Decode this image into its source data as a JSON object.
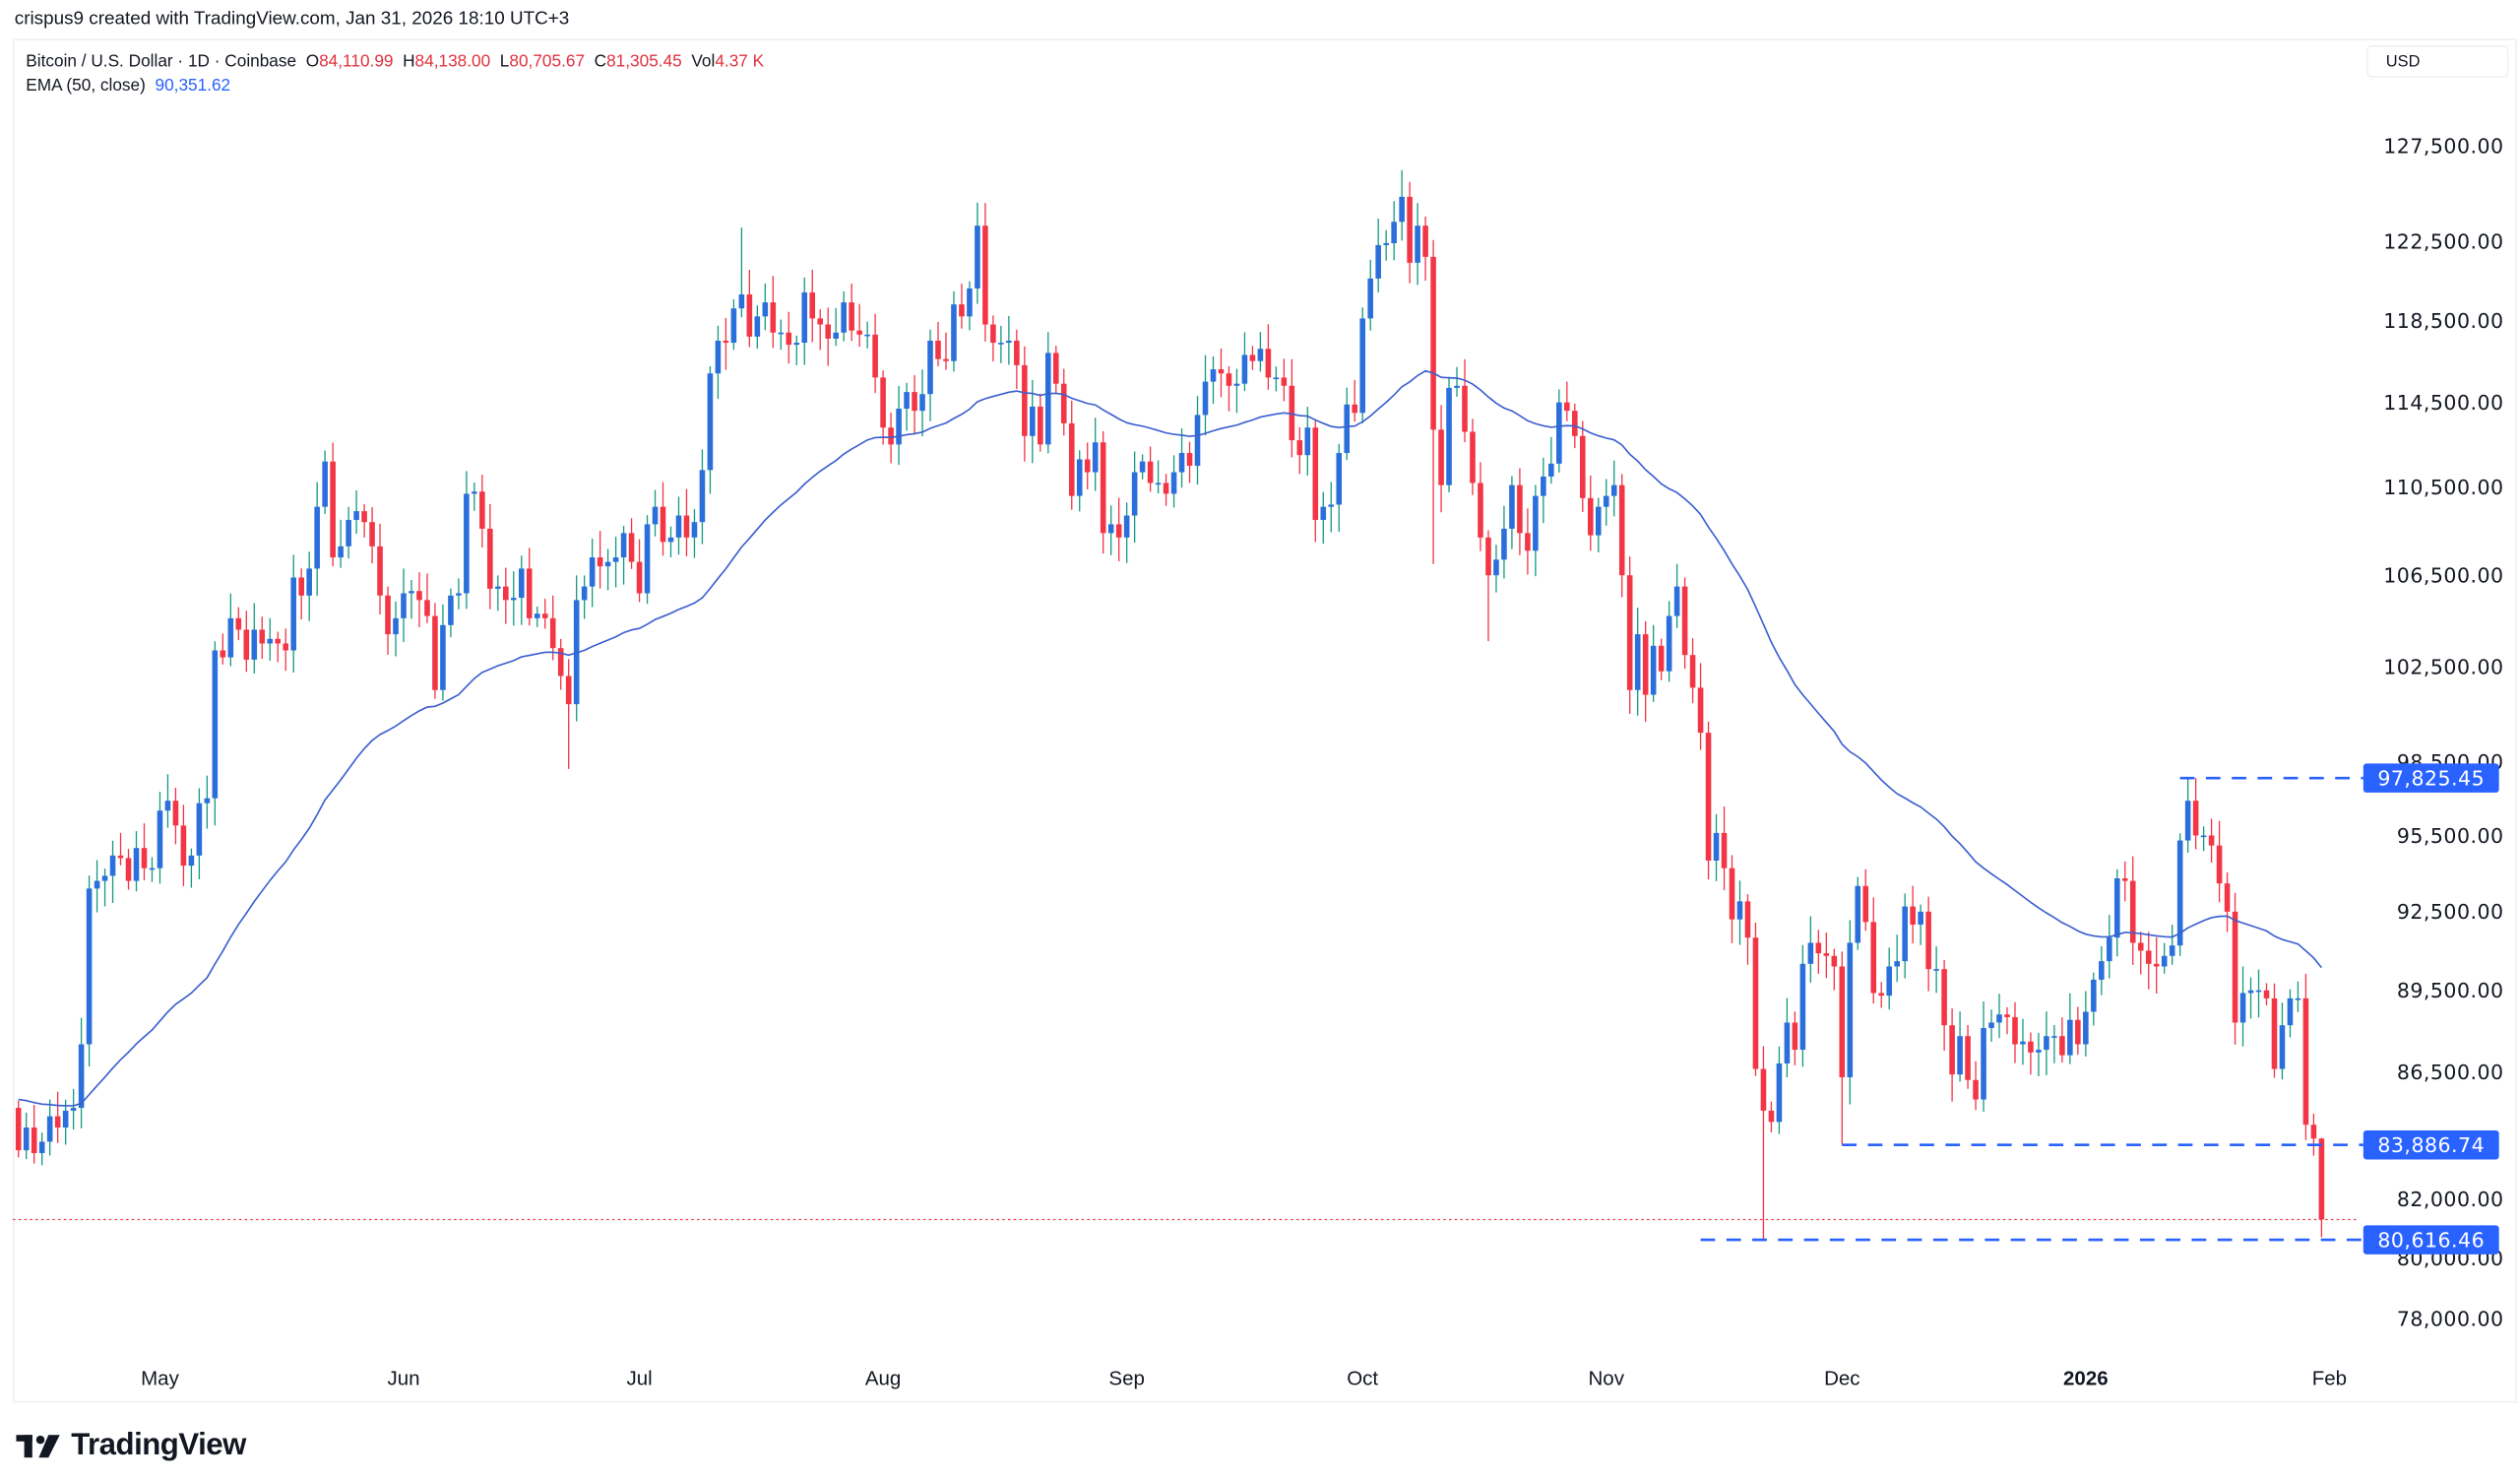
{
  "caption": "crispus9 created with TradingView.com, Jan 31, 2026 18:10 UTC+3",
  "legend": {
    "symbol": "Bitcoin / U.S. Dollar · 1D · Coinbase",
    "o_label": "O",
    "o": "84,110.99",
    "h_label": "H",
    "h": "84,138.00",
    "l_label": "L",
    "l": "80,705.67",
    "c_label": "C",
    "c": "81,305.45",
    "vol_label": "Vol",
    "vol": "4.37 K",
    "ema_label": "EMA (50, close)",
    "ema": "90,351.62"
  },
  "currency": "USD",
  "brand": "TradingView",
  "colors": {
    "up": "#2a6fdb",
    "up_wick": "#169a82",
    "down": "#f23645",
    "ema": "#3b5fcf",
    "marker": "#2962ff",
    "last_price_line": "#f23645"
  },
  "chart_data": {
    "type": "candlestick",
    "scale": "log",
    "grid": false,
    "start_date": "2025-04-13",
    "end_date": "2026-01-31",
    "ylim": [
      76500,
      134000
    ],
    "y_ticks": [
      "127,500.00",
      "122,500.00",
      "118,500.00",
      "114,500.00",
      "110,500.00",
      "106,500.00",
      "102,500.00",
      "98,500.00",
      "95,500.00",
      "92,500.00",
      "89,500.00",
      "86,500.00",
      "82,000.00",
      "80,000.00",
      "78,000.00"
    ],
    "y_tick_values": [
      127500,
      122500,
      118500,
      114500,
      110500,
      106500,
      102500,
      98500,
      95500,
      92500,
      89500,
      86500,
      82000,
      80000,
      78000
    ],
    "x_ticks": [
      {
        "label": "May",
        "date": "2025-05-01"
      },
      {
        "label": "Jun",
        "date": "2025-06-01"
      },
      {
        "label": "Jul",
        "date": "2025-07-01"
      },
      {
        "label": "Aug",
        "date": "2025-08-01"
      },
      {
        "label": "Sep",
        "date": "2025-09-01"
      },
      {
        "label": "Oct",
        "date": "2025-10-01"
      },
      {
        "label": "Nov",
        "date": "2025-11-01"
      },
      {
        "label": "Dec",
        "date": "2025-12-01"
      },
      {
        "label": "2026",
        "date": "2026-01-01",
        "bold": true
      },
      {
        "label": "Feb",
        "date": "2026-02-01"
      }
    ],
    "first_open": 85200,
    "closes": [
      83700,
      84500,
      83600,
      84000,
      84900,
      84500,
      85100,
      85200,
      87500,
      93400,
      93700,
      93900,
      94700,
      94600,
      93700,
      95000,
      94200,
      94200,
      96500,
      96900,
      95900,
      94300,
      94700,
      96800,
      97000,
      103200,
      102900,
      104600,
      104100,
      102800,
      104100,
      103500,
      103700,
      103500,
      103200,
      106400,
      105600,
      106800,
      109600,
      111700,
      107300,
      107800,
      109000,
      109400,
      108900,
      107800,
      105600,
      103900,
      104600,
      105700,
      105800,
      105400,
      104700,
      101500,
      104300,
      105600,
      105700,
      110200,
      110300,
      108600,
      105900,
      106000,
      105400,
      105500,
      106800,
      104600,
      104800,
      104600,
      103300,
      102100,
      100900,
      105400,
      106000,
      107300,
      106900,
      107100,
      107300,
      108400,
      107100,
      105700,
      108800,
      109600,
      108000,
      108200,
      109200,
      108200,
      108900,
      111300,
      115900,
      117500,
      117400,
      119100,
      119800,
      117700,
      118700,
      119400,
      117900,
      117900,
      117300,
      117400,
      119900,
      118600,
      118300,
      117600,
      117900,
      119400,
      118000,
      117800,
      117800,
      115700,
      113300,
      112500,
      114200,
      115000,
      114100,
      114900,
      117500,
      116600,
      116500,
      119300,
      118700,
      120100,
      123300,
      118300,
      117400,
      117400,
      117500,
      116300,
      112900,
      114300,
      112500,
      116900,
      115400,
      113500,
      110100,
      111800,
      111200,
      112600,
      108400,
      108800,
      108200,
      109200,
      111200,
      111700,
      110700,
      110700,
      110200,
      111200,
      112100,
      111500,
      113900,
      115500,
      116100,
      115900,
      115300,
      115400,
      116800,
      116500,
      117100,
      115700,
      115700,
      115300,
      112700,
      112000,
      113300,
      109000,
      109600,
      109700,
      112100,
      114400,
      114000,
      118600,
      120600,
      122300,
      122400,
      123500,
      124800,
      121400,
      123300,
      121700,
      113200,
      110600,
      115200,
      115300,
      113100,
      110700,
      108200,
      106500,
      107200,
      108600,
      110600,
      108400,
      107600,
      110100,
      111000,
      111600,
      114500,
      114100,
      112900,
      110000,
      108300,
      109600,
      110100,
      110600,
      106500,
      101500,
      103900,
      101300,
      103400,
      102300,
      104700,
      106000,
      103000,
      101600,
      99700,
      94500,
      95600,
      94200,
      92200,
      92900,
      91500,
      86600,
      85100,
      84700,
      86800,
      88300,
      87300,
      90500,
      91300,
      90900,
      90800,
      90400,
      86300,
      91300,
      93500,
      92100,
      89400,
      89300,
      90400,
      90600,
      92700,
      92000,
      92500,
      90300,
      90300,
      88200,
      86400,
      87800,
      86200,
      85500,
      88100,
      88300,
      88600,
      88500,
      87500,
      87600,
      87200,
      87300,
      87800,
      87800,
      87100,
      88400,
      87500,
      88700,
      89900,
      90600,
      91500,
      93800,
      93700,
      91300,
      91000,
      90500,
      90400,
      90800,
      91200,
      95300,
      96900,
      95500,
      95500,
      95100,
      93600,
      92500,
      88300,
      89400,
      89500,
      89500,
      89200,
      86600,
      88200,
      89200,
      89200,
      84600,
      84110.99,
      81305.45
    ],
    "notable_extremes": [
      {
        "date": "2025-06-22",
        "low": 98200
      },
      {
        "date": "2025-07-14",
        "high": 123200
      },
      {
        "date": "2025-08-13",
        "high": 124500
      },
      {
        "date": "2025-10-06",
        "high": 126200
      },
      {
        "date": "2025-10-10",
        "low": 107000
      },
      {
        "date": "2025-10-17",
        "low": 103600
      },
      {
        "date": "2025-11-21",
        "low": 80616.46
      },
      {
        "date": "2025-12-01",
        "low": 83886.74
      },
      {
        "date": "2026-01-14",
        "high": 97825.45
      },
      {
        "date": "2026-01-31",
        "high": 84138.0,
        "low": 80705.67
      }
    ],
    "ema": {
      "period": 50,
      "source": "close",
      "last": 90351.62
    },
    "last_price": 81305.45,
    "horizontal_levels": [
      {
        "value": 97825.45,
        "label": "97,825.45",
        "from": "2026-01-13"
      },
      {
        "value": 83886.74,
        "label": "83,886.74",
        "from": "2025-12-01"
      },
      {
        "value": 80616.46,
        "label": "80,616.46",
        "from": "2025-11-13"
      }
    ]
  }
}
